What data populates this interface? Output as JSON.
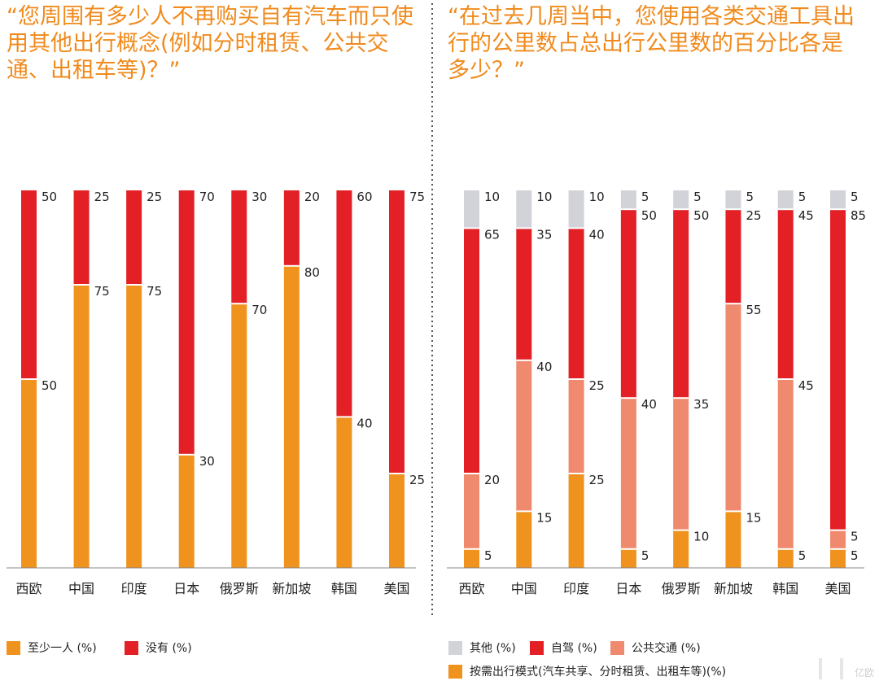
{
  "questions": {
    "left": "“您周围有多少人不再购买自有汽车而只使用其他出行概念(例如分时租赁、公共交通、出租车等)？”",
    "right": "“在过去几周当中，您使用各类交通工具出行的公里数占总出行公里数的百分比各是多少？”"
  },
  "chart_data": [
    {
      "type": "bar",
      "stacked": true,
      "title": "“您周围有多少人不再购买自有汽车而只使用其他出行概念(例如分时租赁、公共交通、出租车等)？”",
      "categories": [
        "西欧",
        "中国",
        "印度",
        "日本",
        "俄罗斯",
        "新加坡",
        "韩国",
        "美国"
      ],
      "series": [
        {
          "name": "至少一人 (%)",
          "color": "#F0921E",
          "values": [
            50,
            75,
            75,
            30,
            70,
            80,
            40,
            25
          ]
        },
        {
          "name": "没有 (%)",
          "color": "#E32026",
          "values": [
            50,
            25,
            25,
            70,
            30,
            20,
            60,
            75
          ]
        }
      ],
      "ylim": [
        0,
        100
      ],
      "xlabel": "",
      "ylabel": "",
      "grid": false
    },
    {
      "type": "bar",
      "stacked": true,
      "title": "“在过去几周当中，您使用各类交通工具出行的公里数占总出行公里数的百分比各是多少？”",
      "categories": [
        "西欧",
        "中国",
        "印度",
        "日本",
        "俄罗斯",
        "新加坡",
        "韩国",
        "美国"
      ],
      "series": [
        {
          "name": "按需出行模式(汽车共享、分时租赁、出租车等)(%)",
          "color": "#F0921E",
          "values": [
            5,
            15,
            25,
            5,
            10,
            15,
            5,
            5
          ]
        },
        {
          "name": "公共交通 (%)",
          "color": "#EF8A6E",
          "values": [
            20,
            40,
            25,
            40,
            35,
            55,
            45,
            5
          ]
        },
        {
          "name": "自驾 (%)",
          "color": "#E32026",
          "values": [
            65,
            35,
            40,
            50,
            50,
            25,
            45,
            85
          ]
        },
        {
          "name": "其他 (%)",
          "color": "#D2D3D8",
          "values": [
            10,
            10,
            10,
            5,
            5,
            5,
            5,
            5
          ]
        }
      ],
      "ylim": [
        0,
        100
      ],
      "xlabel": "",
      "ylabel": "",
      "grid": false
    }
  ],
  "watermark": "亿欧"
}
